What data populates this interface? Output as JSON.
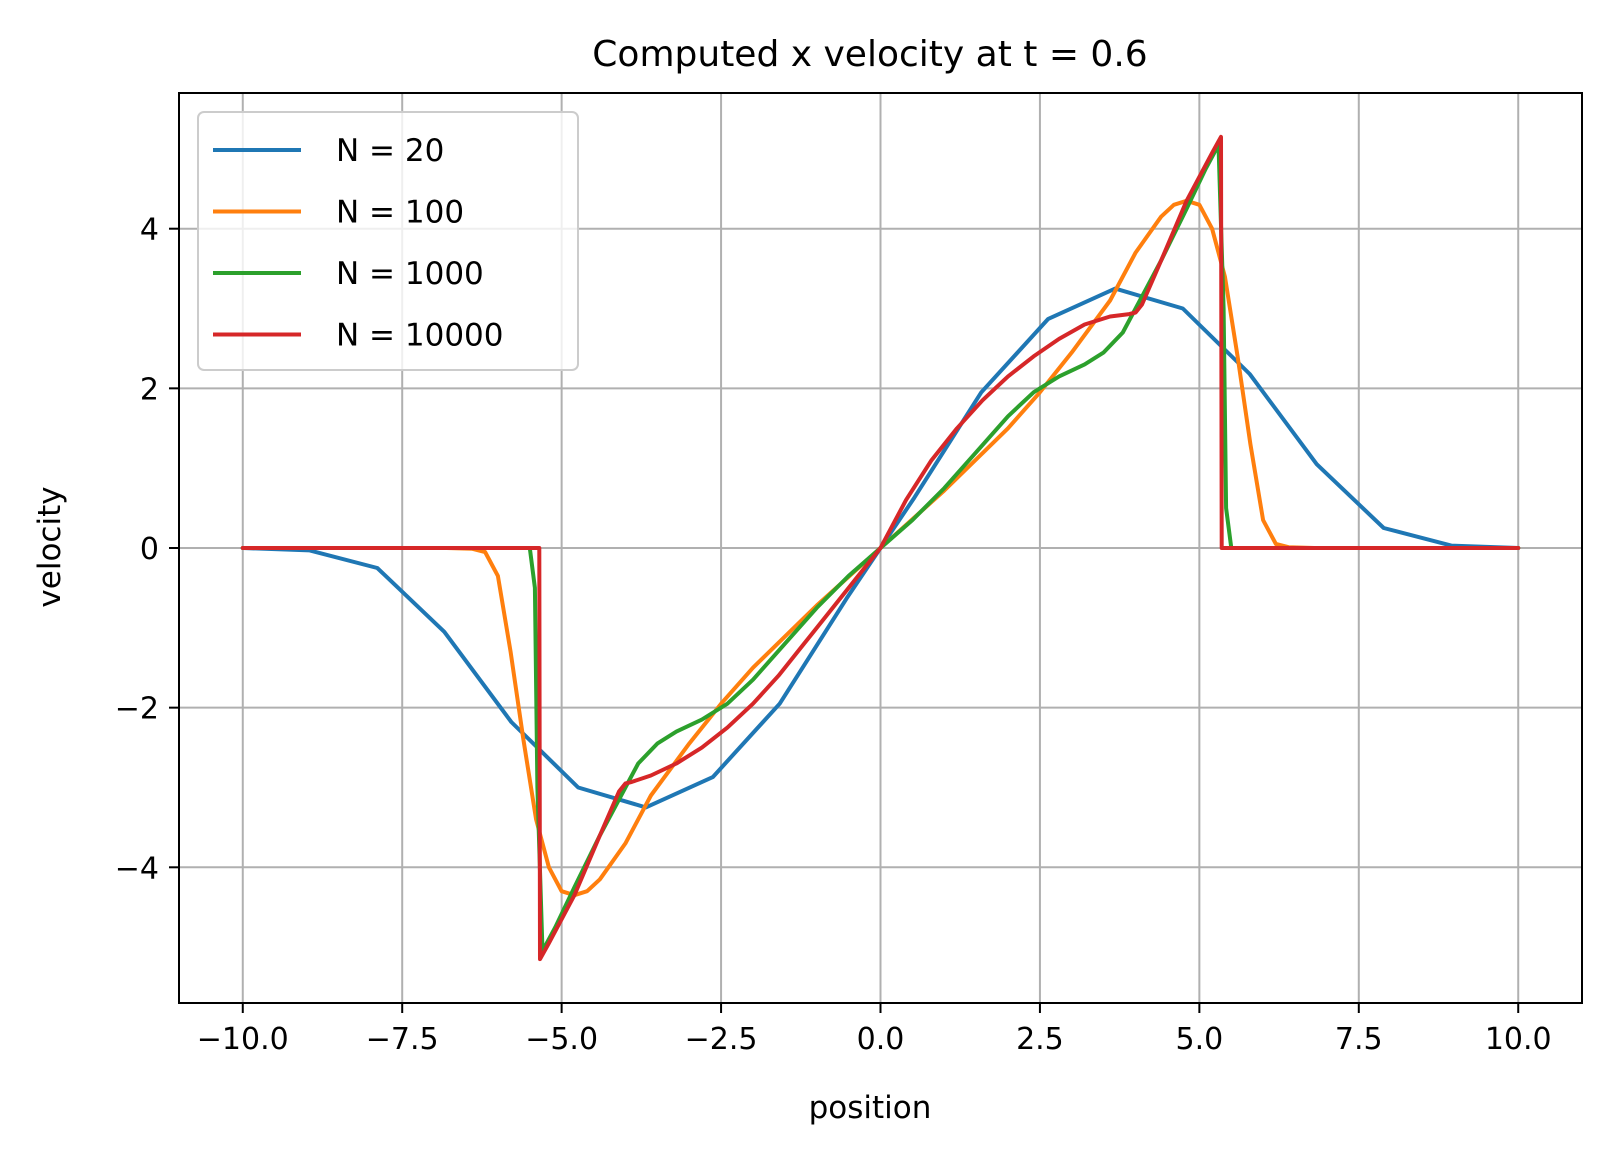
{
  "chart_data": {
    "type": "line",
    "title": "Computed x velocity at t = 0.6",
    "xlabel": "position",
    "ylabel": "velocity",
    "xlim": [
      -11.0,
      11.0
    ],
    "ylim": [
      -5.7,
      5.7
    ],
    "grid": true,
    "legend_position": "top-left",
    "x_ticks": [
      -10.0,
      -7.5,
      -5.0,
      -2.5,
      0.0,
      2.5,
      5.0,
      7.5,
      10.0
    ],
    "x_tick_labels": [
      "−10.0",
      "−7.5",
      "−5.0",
      "−2.5",
      "0.0",
      "2.5",
      "5.0",
      "7.5",
      "10.0"
    ],
    "y_ticks": [
      -4,
      -2,
      0,
      2,
      4
    ],
    "y_tick_labels": [
      "−4",
      "−2",
      "0",
      "2",
      "4"
    ],
    "series": [
      {
        "name": "N = 20",
        "color": "#1f77b4",
        "x": [
          -10.0,
          -8.95,
          -7.89,
          -6.84,
          -5.79,
          -4.74,
          -3.68,
          -2.63,
          -1.58,
          -0.53,
          0.0,
          0.53,
          1.58,
          2.63,
          3.68,
          4.74,
          5.79,
          6.84,
          7.89,
          8.95,
          10.0
        ],
        "y": [
          0.0,
          -0.03,
          -0.25,
          -1.05,
          -2.18,
          -3.0,
          -3.25,
          -2.87,
          -1.95,
          -0.63,
          0.0,
          0.63,
          1.95,
          2.87,
          3.25,
          3.0,
          2.18,
          1.05,
          0.25,
          0.03,
          0.0
        ]
      },
      {
        "name": "N = 100",
        "color": "#ff7f0e",
        "x": [
          -10.0,
          -6.8,
          -6.4,
          -6.2,
          -6.0,
          -5.8,
          -5.6,
          -5.4,
          -5.2,
          -5.0,
          -4.8,
          -4.6,
          -4.4,
          -4.0,
          -3.6,
          -3.0,
          -2.5,
          -2.0,
          -1.0,
          0.0,
          1.0,
          2.0,
          2.5,
          3.0,
          3.6,
          4.0,
          4.4,
          4.6,
          4.8,
          5.0,
          5.2,
          5.4,
          5.6,
          5.8,
          6.0,
          6.2,
          6.4,
          6.8,
          10.0
        ],
        "y": [
          0.0,
          0.0,
          -0.01,
          -0.05,
          -0.35,
          -1.3,
          -2.4,
          -3.4,
          -4.0,
          -4.3,
          -4.35,
          -4.3,
          -4.15,
          -3.7,
          -3.1,
          -2.45,
          -1.95,
          -1.5,
          -0.72,
          0.0,
          0.72,
          1.5,
          1.95,
          2.45,
          3.1,
          3.7,
          4.15,
          4.3,
          4.35,
          4.3,
          4.0,
          3.4,
          2.4,
          1.3,
          0.35,
          0.05,
          0.01,
          0.0,
          0.0
        ]
      },
      {
        "name": "N = 1000",
        "color": "#2ca02c",
        "x": [
          -10.0,
          -5.5,
          -5.42,
          -5.38,
          -5.3,
          -5.1,
          -4.8,
          -4.4,
          -4.0,
          -3.8,
          -3.5,
          -3.2,
          -2.8,
          -2.4,
          -2.0,
          -1.5,
          -1.0,
          -0.5,
          0.0,
          0.5,
          1.0,
          1.5,
          2.0,
          2.4,
          2.8,
          3.2,
          3.5,
          3.8,
          4.0,
          4.4,
          4.8,
          5.1,
          5.3,
          5.38,
          5.42,
          5.5,
          10.0
        ],
        "y": [
          0.0,
          0.0,
          -0.5,
          -3.0,
          -5.05,
          -4.75,
          -4.25,
          -3.6,
          -3.0,
          -2.7,
          -2.45,
          -2.3,
          -2.15,
          -1.95,
          -1.65,
          -1.2,
          -0.75,
          -0.35,
          0.0,
          0.35,
          0.75,
          1.2,
          1.65,
          1.95,
          2.15,
          2.3,
          2.45,
          2.7,
          3.0,
          3.6,
          4.25,
          4.75,
          5.05,
          3.0,
          0.5,
          0.0,
          0.0
        ]
      },
      {
        "name": "N = 10000",
        "color": "#d62728",
        "x": [
          -10.0,
          -5.35,
          -5.34,
          -5.2,
          -4.8,
          -4.4,
          -4.1,
          -4.0,
          -3.9,
          -3.6,
          -3.2,
          -2.8,
          -2.4,
          -2.0,
          -1.6,
          -1.2,
          -0.8,
          -0.4,
          0.0,
          0.4,
          0.8,
          1.2,
          1.6,
          2.0,
          2.4,
          2.8,
          3.2,
          3.6,
          3.9,
          4.0,
          4.1,
          4.4,
          4.8,
          5.2,
          5.34,
          5.35,
          10.0
        ],
        "y": [
          0.0,
          0.0,
          -5.15,
          -4.95,
          -4.35,
          -3.6,
          -3.05,
          -2.95,
          -2.93,
          -2.85,
          -2.7,
          -2.5,
          -2.25,
          -1.95,
          -1.6,
          -1.2,
          -0.8,
          -0.4,
          0.0,
          0.6,
          1.1,
          1.5,
          1.85,
          2.15,
          2.4,
          2.62,
          2.8,
          2.9,
          2.93,
          2.95,
          3.05,
          3.6,
          4.35,
          4.95,
          5.15,
          0.0,
          0.0
        ]
      }
    ]
  }
}
